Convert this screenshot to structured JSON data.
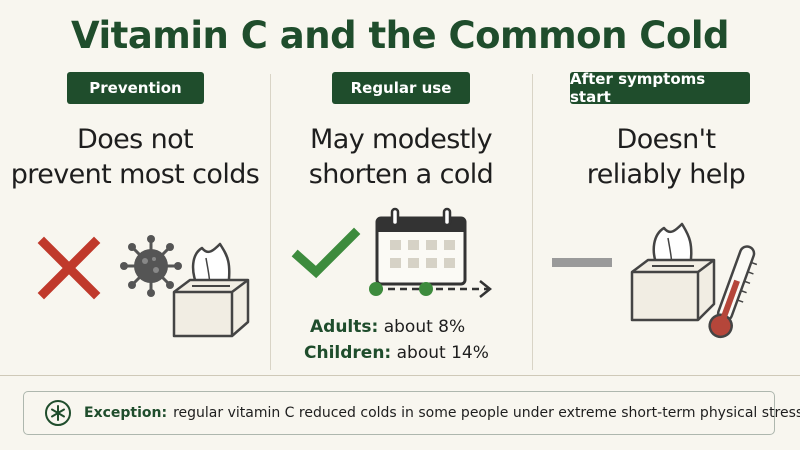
{
  "title": "Vitamin C and the Common Cold",
  "columns": [
    {
      "badge": "Prevention",
      "headline_lines": [
        "Does not",
        "prevent most colds"
      ]
    },
    {
      "badge": "Regular use",
      "headline_lines": [
        "May modestly",
        "shorten a cold"
      ],
      "rates": [
        {
          "label": "Adults:",
          "value": "about 8%"
        },
        {
          "label": "Children:",
          "value": "about 14%"
        }
      ]
    },
    {
      "badge": "After symptoms start",
      "headline_lines": [
        "Doesn't",
        "reliably help"
      ]
    }
  ],
  "icons": {
    "col1": [
      "x-mark-icon",
      "virus-icon",
      "tissue-box-icon"
    ],
    "col2": [
      "check-mark-icon",
      "calendar-icon",
      "timeline-arrow-icon"
    ],
    "col3": [
      "dash-icon",
      "tissue-box-icon",
      "thermometer-icon"
    ],
    "exception": "asterisk-circle-icon"
  },
  "exception": {
    "label": "Exception:",
    "text": "regular vitamin C reduced colds in some people under extreme short-term physical stress."
  },
  "colors": {
    "brand_green": "#1f4d2c",
    "cross_red": "#c0392b",
    "check_green": "#3d8b3d",
    "dash_gray": "#9a9a9a",
    "background": "#f8f6ef"
  }
}
